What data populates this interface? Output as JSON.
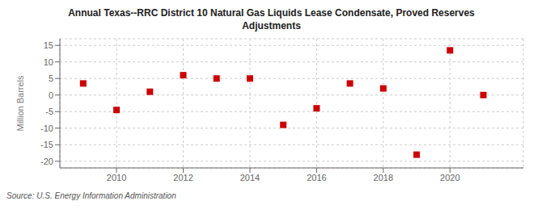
{
  "chart_data": {
    "type": "scatter",
    "title": "Annual Texas--RRC District 10 Natural Gas Liquids Lease Condensate, Proved Reserves\nAdjustments",
    "ylabel": "Million Barrels",
    "annotations": [
      "Source: U.S. Energy Information Administration"
    ],
    "x": [
      2009,
      2010,
      2011,
      2012,
      2013,
      2014,
      2015,
      2016,
      2017,
      2018,
      2019,
      2020,
      2021
    ],
    "values": [
      3.5,
      -4.5,
      1.0,
      6.0,
      5.0,
      5.0,
      -9.0,
      -4.0,
      3.5,
      2.0,
      -18.0,
      13.5,
      0.0
    ],
    "color": "#cc0000",
    "marker": "square",
    "xlim": [
      2008.3,
      2022.2
    ],
    "ylim": [
      -22,
      17
    ],
    "xticks": [
      2010,
      2012,
      2014,
      2016,
      2018,
      2020
    ],
    "yticks": [
      -20,
      -15,
      -10,
      -5,
      0,
      5,
      10,
      15
    ],
    "grid": true
  }
}
